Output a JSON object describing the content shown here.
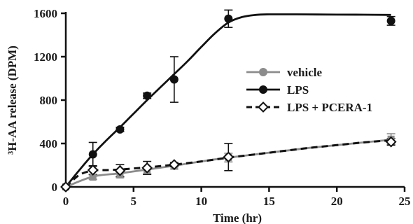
{
  "chart_data": {
    "type": "line",
    "xlabel": "Time (hr)",
    "ylabel": "³H-AA release (DPM)",
    "xlim": [
      0,
      25
    ],
    "ylim": [
      0,
      1600
    ],
    "x_ticks": [
      "0",
      "5",
      "10",
      "15",
      "20",
      "25"
    ],
    "y_ticks": [
      "0",
      "400",
      "800",
      "1200",
      "1600"
    ],
    "grid": false,
    "legend_position": "right-center",
    "series": [
      {
        "name": "vehicle",
        "color": "#8c8c8c",
        "marker": "filled-square",
        "line": "solid",
        "x": [
          0,
          2,
          4,
          6,
          8,
          12,
          24
        ],
        "y": [
          0,
          90,
          110,
          150,
          190,
          270,
          440
        ],
        "err": [
          0,
          20,
          25,
          30,
          25,
          40,
          50
        ],
        "fit_x": [
          0,
          2,
          4,
          6,
          8,
          10,
          12,
          14,
          16,
          18,
          20,
          22,
          24
        ],
        "fit_y": [
          0,
          95,
          125,
          160,
          195,
          235,
          270,
          300,
          330,
          360,
          385,
          410,
          435
        ]
      },
      {
        "name": "LPS",
        "color": "#111111",
        "marker": "filled-circle",
        "line": "solid",
        "x": [
          0,
          2,
          4,
          6,
          8,
          12,
          24
        ],
        "y": [
          0,
          300,
          530,
          840,
          990,
          1550,
          1530
        ],
        "err": [
          0,
          110,
          20,
          25,
          210,
          80,
          40
        ],
        "fit_x": [
          0,
          1,
          2,
          3,
          4,
          5,
          6,
          7,
          8,
          9,
          10,
          11,
          12,
          13,
          14,
          15,
          17,
          20,
          22,
          24
        ],
        "fit_y": [
          0,
          155,
          300,
          430,
          550,
          675,
          800,
          920,
          1040,
          1160,
          1290,
          1415,
          1515,
          1565,
          1585,
          1590,
          1590,
          1588,
          1587,
          1585
        ]
      },
      {
        "name": "LPS + PCERA-1",
        "color": "#111111",
        "marker": "open-diamond",
        "line": "dashed",
        "x": [
          0,
          2,
          4,
          6,
          8,
          12,
          24
        ],
        "y": [
          0,
          155,
          150,
          175,
          205,
          275,
          415
        ],
        "err": [
          0,
          40,
          55,
          60,
          20,
          125,
          30
        ],
        "fit_x": [
          0,
          1,
          2,
          3,
          4,
          5,
          6,
          7,
          8,
          10,
          12,
          14,
          16,
          18,
          20,
          22,
          24
        ],
        "fit_y": [
          0,
          110,
          150,
          155,
          160,
          170,
          180,
          192,
          205,
          235,
          270,
          300,
          330,
          360,
          385,
          410,
          430
        ]
      }
    ]
  }
}
